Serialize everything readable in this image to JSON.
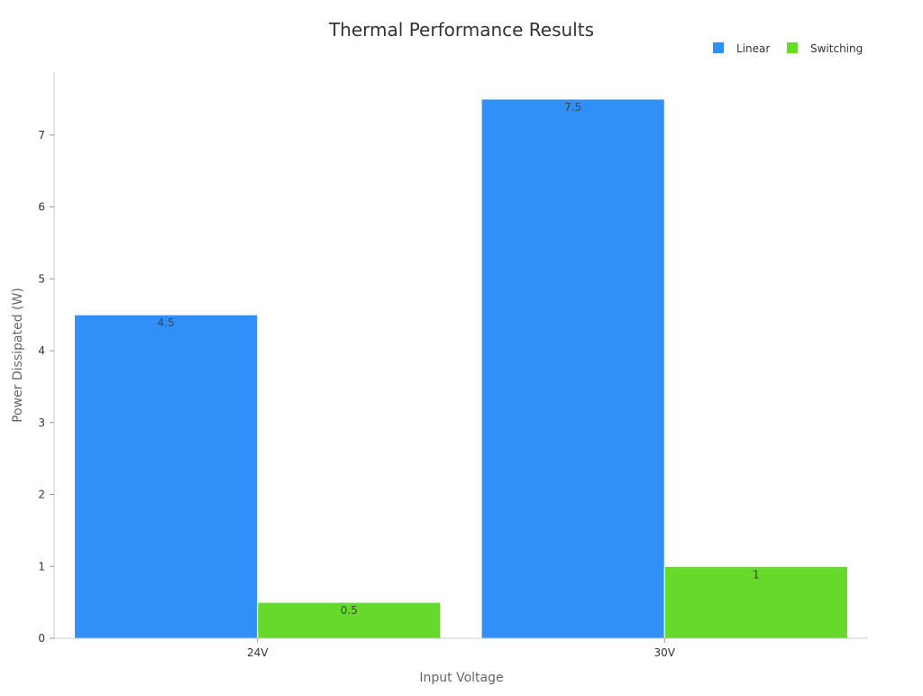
{
  "chart_data": {
    "type": "bar",
    "title": "Thermal Performance Results",
    "xlabel": "Input Voltage",
    "ylabel": "Power Dissipated (W)",
    "categories": [
      "24V",
      "30V"
    ],
    "series": [
      {
        "name": "Linear",
        "values": [
          4.5,
          7.5
        ],
        "color": "#3090F8"
      },
      {
        "name": "Switching",
        "values": [
          0.5,
          1
        ],
        "color": "#66D92A"
      }
    ],
    "ylim": [
      0,
      7.875
    ],
    "yticks": [
      0,
      1,
      2,
      3,
      4,
      5,
      6,
      7
    ],
    "data_labels": [
      [
        "4.5",
        "7.5"
      ],
      [
        "0.5",
        "1"
      ]
    ],
    "grid": false,
    "legend_position": "top-right"
  }
}
